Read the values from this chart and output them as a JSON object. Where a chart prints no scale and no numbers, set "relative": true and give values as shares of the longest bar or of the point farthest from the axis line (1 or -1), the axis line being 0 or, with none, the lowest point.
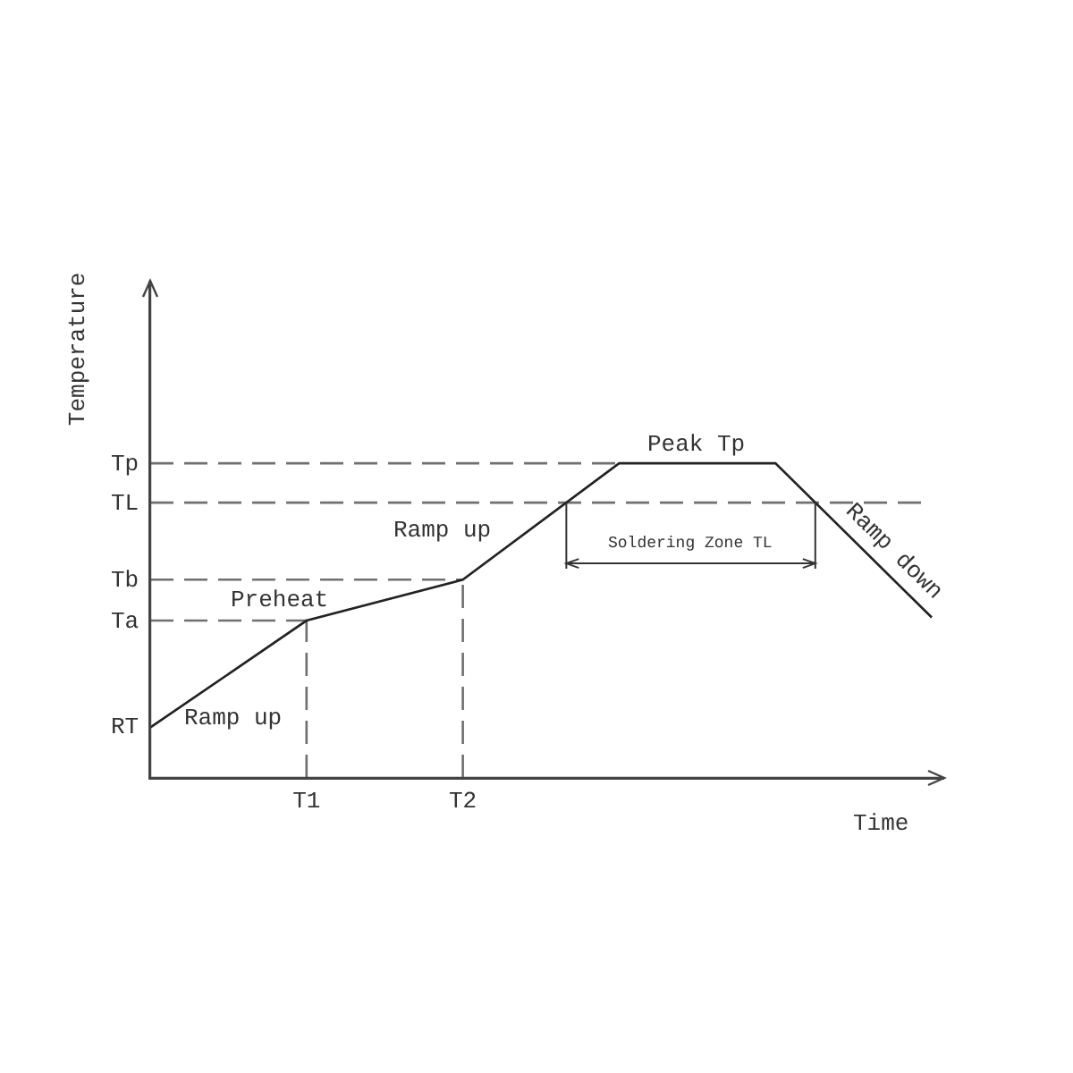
{
  "chart_data": {
    "type": "line",
    "xlabel": "Time",
    "ylabel": "Temperature",
    "relative": true,
    "grid": false,
    "line_style": "solid",
    "categories": [
      null,
      "T1",
      "T2",
      null,
      null,
      null
    ],
    "series": [
      {
        "color": "#222222",
        "values": [
          0.16,
          0.5,
          0.63,
          1,
          1,
          0.51
        ]
      }
    ],
    "ref_lines": [
      {
        "axis": "y",
        "value": 1,
        "label": "Tp",
        "color": "#707070",
        "line_style": "dashed"
      },
      {
        "axis": "y",
        "value": 0.875,
        "label": "TL",
        "color": "#707070",
        "line_style": "dashed"
      },
      {
        "axis": "y",
        "value": 0.63,
        "label": "Tb",
        "color": "#707070",
        "line_style": "dashed"
      },
      {
        "axis": "y",
        "value": 0.5,
        "label": "Ta",
        "color": "#707070",
        "line_style": "dashed"
      },
      {
        "axis": "x",
        "value": "T1",
        "color": "#707070",
        "line_style": "dashed"
      },
      {
        "axis": "x",
        "value": "T2",
        "color": "#707070",
        "line_style": "dashed"
      }
    ],
    "annotations": [
      "RT",
      "Ramp up",
      "Preheat",
      "Ramp up",
      "Peak Tp",
      "Ramp down",
      "Soldering Zone TL"
    ]
  }
}
